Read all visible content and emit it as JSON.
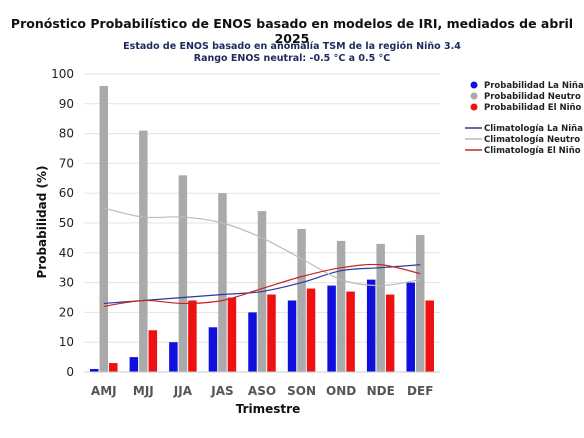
{
  "chart_data": {
    "type": "bar",
    "title": "Pronóstico Probabilístico de ENOS basado en modelos de IRI, mediados de abril 2025",
    "subtitle_lines": [
      "Estado de ENOS basado en anomalía TSM de la región Niño 3.4",
      "Rango ENOS neutral: -0.5 °C a 0.5 °C"
    ],
    "xlabel": "Trimestre",
    "ylabel": "Probabilidad (%)",
    "ylim": [
      0,
      100
    ],
    "yticks": [
      0,
      10,
      20,
      30,
      40,
      50,
      60,
      70,
      80,
      90,
      100
    ],
    "grid": true,
    "legend_position": "right",
    "categories": [
      "AMJ",
      "MJJ",
      "JJA",
      "JAS",
      "ASO",
      "SON",
      "OND",
      "NDE",
      "DEF"
    ],
    "series": [
      {
        "name": "Probabilidad La Niña",
        "kind": "bar",
        "color": "#1010dd",
        "values": [
          1,
          5,
          10,
          15,
          20,
          24,
          29,
          31,
          30
        ]
      },
      {
        "name": "Probabilidad Neutro",
        "kind": "bar",
        "color": "#aaaaaa",
        "values": [
          96,
          81,
          66,
          60,
          54,
          48,
          44,
          43,
          46
        ]
      },
      {
        "name": "Probabilidad El Niño",
        "kind": "bar",
        "color": "#ee1111",
        "values": [
          3,
          14,
          24,
          25,
          26,
          28,
          27,
          26,
          24
        ]
      },
      {
        "name": "Climatología La Niña",
        "kind": "line",
        "color": "#2a3a9a",
        "values": [
          23,
          24,
          25,
          26,
          27,
          30,
          34,
          35,
          36
        ]
      },
      {
        "name": "Climatología Neutro",
        "kind": "line",
        "color": "#bbbbbb",
        "values": [
          55,
          52,
          52,
          50,
          45,
          38,
          31,
          29,
          31
        ]
      },
      {
        "name": "Climatología El Niño",
        "kind": "line",
        "color": "#cc2222",
        "values": [
          22,
          24,
          23,
          24,
          28,
          32,
          35,
          36,
          33
        ]
      }
    ]
  }
}
